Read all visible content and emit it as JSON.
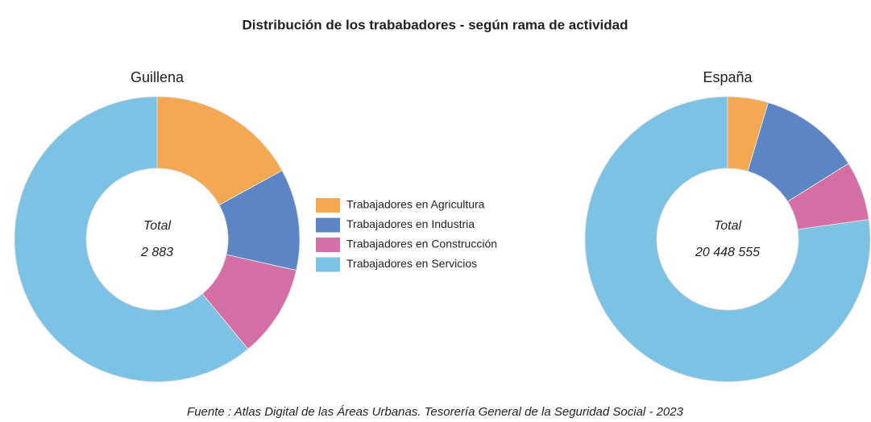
{
  "title": "Distribución de los trababadores - según rama de actividad",
  "legend": {
    "categories": [
      "Trabajadores en Agricultura",
      "Trabajadores en Industria",
      "Trabajadores en Construcción",
      "Trabajadores en Servicios"
    ],
    "colors": [
      "#f4a851",
      "#5b85c5",
      "#d46fa5",
      "#7cc2e4"
    ]
  },
  "source": "Fuente : Atlas Digital de las Áreas Urbanas. Tesorería General de la Seguridad Social - 2023",
  "chart_data": [
    {
      "type": "pie",
      "title": "Guillena",
      "values": [
        17,
        11.5,
        10.5,
        61
      ],
      "center_label": "Total",
      "total": {
        "value": 2883,
        "label": "2 883"
      }
    },
    {
      "type": "pie",
      "title": "España",
      "values": [
        4.6,
        11.5,
        6.7,
        77.2
      ],
      "center_label": "Total",
      "total": {
        "value": 20448555,
        "label": "20 448 555"
      }
    }
  ]
}
